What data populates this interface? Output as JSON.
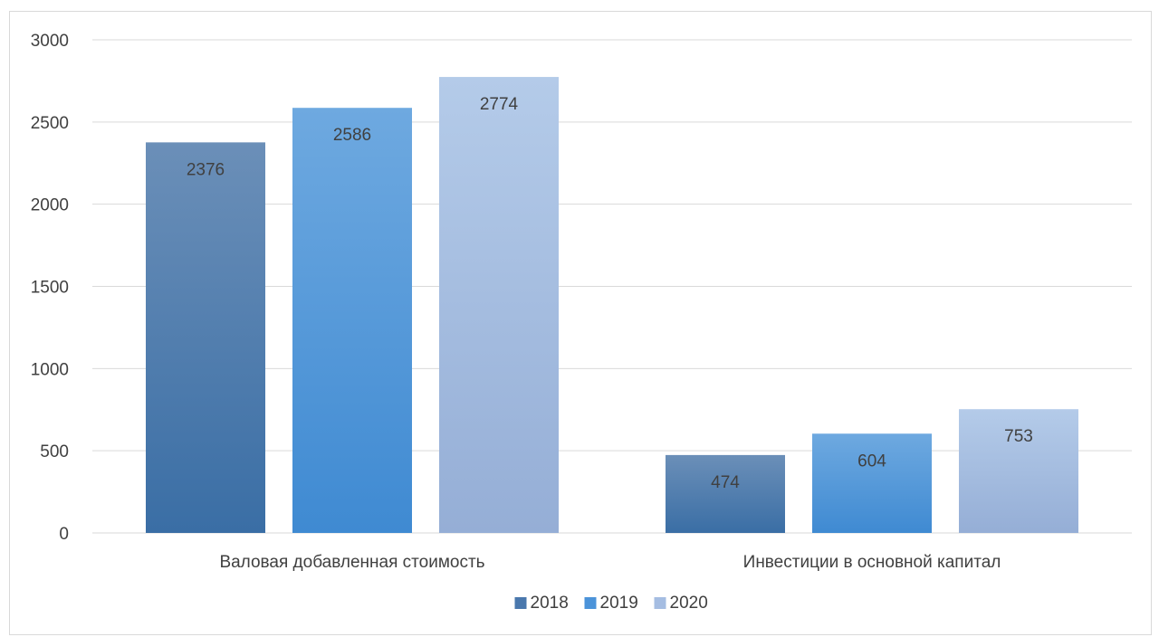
{
  "chart_data": {
    "type": "bar",
    "categories": [
      "Валовая добавленная стоимость",
      "Инвестиции в основной капитал"
    ],
    "series": [
      {
        "name": "2018",
        "values": [
          2376,
          474
        ]
      },
      {
        "name": "2019",
        "values": [
          2586,
          604
        ]
      },
      {
        "name": "2020",
        "values": [
          2774,
          753
        ]
      }
    ],
    "title": "",
    "xlabel": "",
    "ylabel": "",
    "ylim": [
      0,
      3000
    ],
    "yticks": [
      0,
      500,
      1000,
      1500,
      2000,
      2500,
      3000
    ],
    "grid": true,
    "legend_position": "bottom",
    "data_labels": "inside-end",
    "colors": {
      "2018": [
        "#6b8fb8",
        "#3a6ea5"
      ],
      "2019": [
        "#6ea9e0",
        "#3f8ad2"
      ],
      "2020": [
        "#b4cbe9",
        "#95aed6"
      ]
    },
    "legend_swatch_colors": [
      "#4a78ad",
      "#4b93d9",
      "#a5bde2"
    ]
  }
}
